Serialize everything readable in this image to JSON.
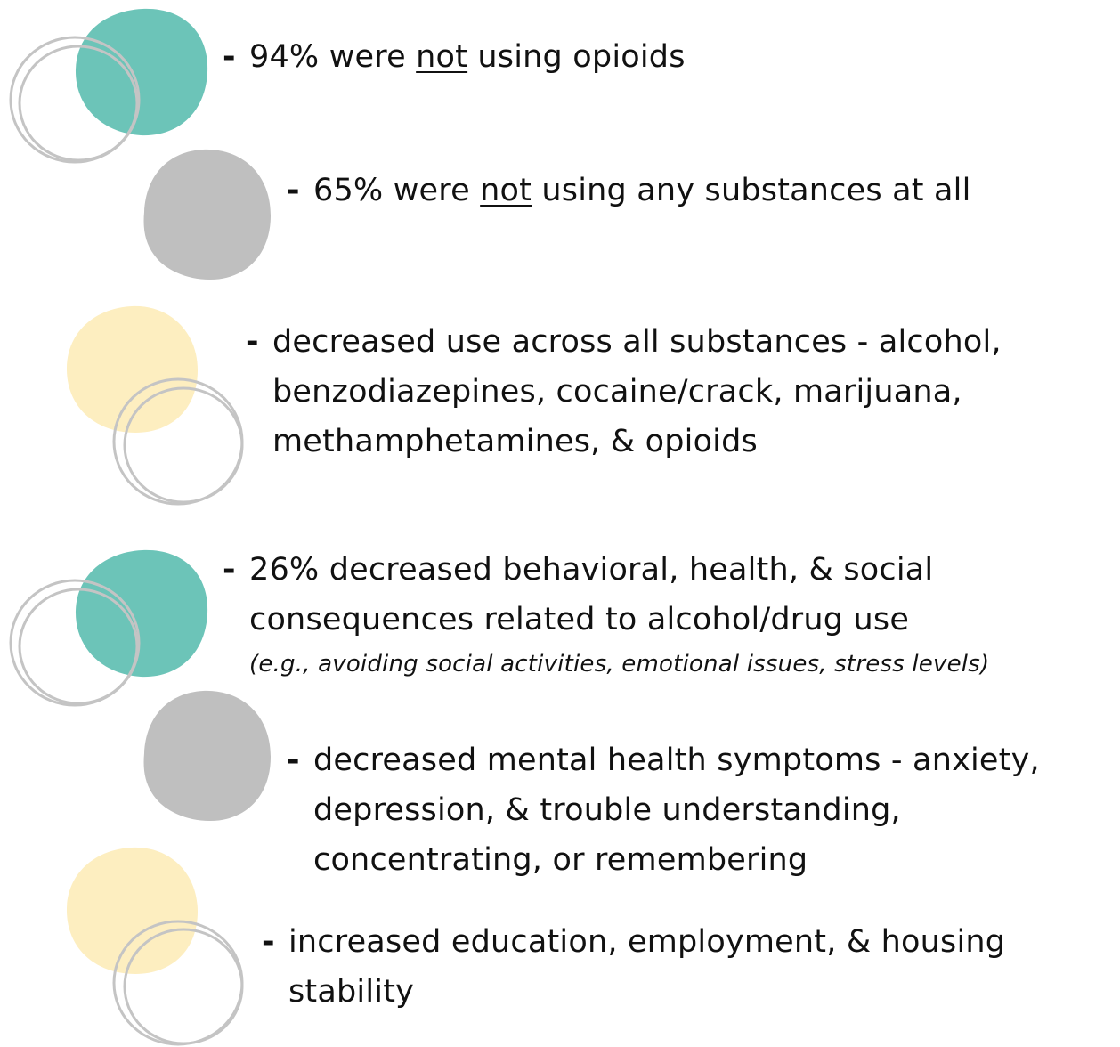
{
  "colors": {
    "teal": "#6cc4b8",
    "gray": "#bfbfbf",
    "yellow": "#fdeec0",
    "ring": "#c4c4c4",
    "text": "#111111"
  },
  "items": [
    {
      "dash": "-",
      "before": "94% were ",
      "underlined": "not",
      "after": " using opioids"
    },
    {
      "dash": "-",
      "before": "65% were ",
      "underlined": "not",
      "after": " using any substances at all"
    },
    {
      "dash": "-",
      "lines": [
        "decreased use across all substances - alcohol,",
        "benzodiazepines, cocaine/crack, marijuana,",
        "methamphetamines, & opioids"
      ]
    },
    {
      "dash": "-",
      "lines": [
        "26% decreased behavioral, health, & social",
        "consequences related to alcohol/drug use"
      ],
      "note": "(e.g., avoiding social activities, emotional issues, stress levels)"
    },
    {
      "dash": "-",
      "lines": [
        "decreased mental health symptoms - anxiety,",
        "depression, & trouble understanding,",
        "concentrating, or remembering"
      ]
    },
    {
      "dash": "-",
      "lines": [
        "increased education, employment, & housing",
        "stability"
      ]
    }
  ]
}
